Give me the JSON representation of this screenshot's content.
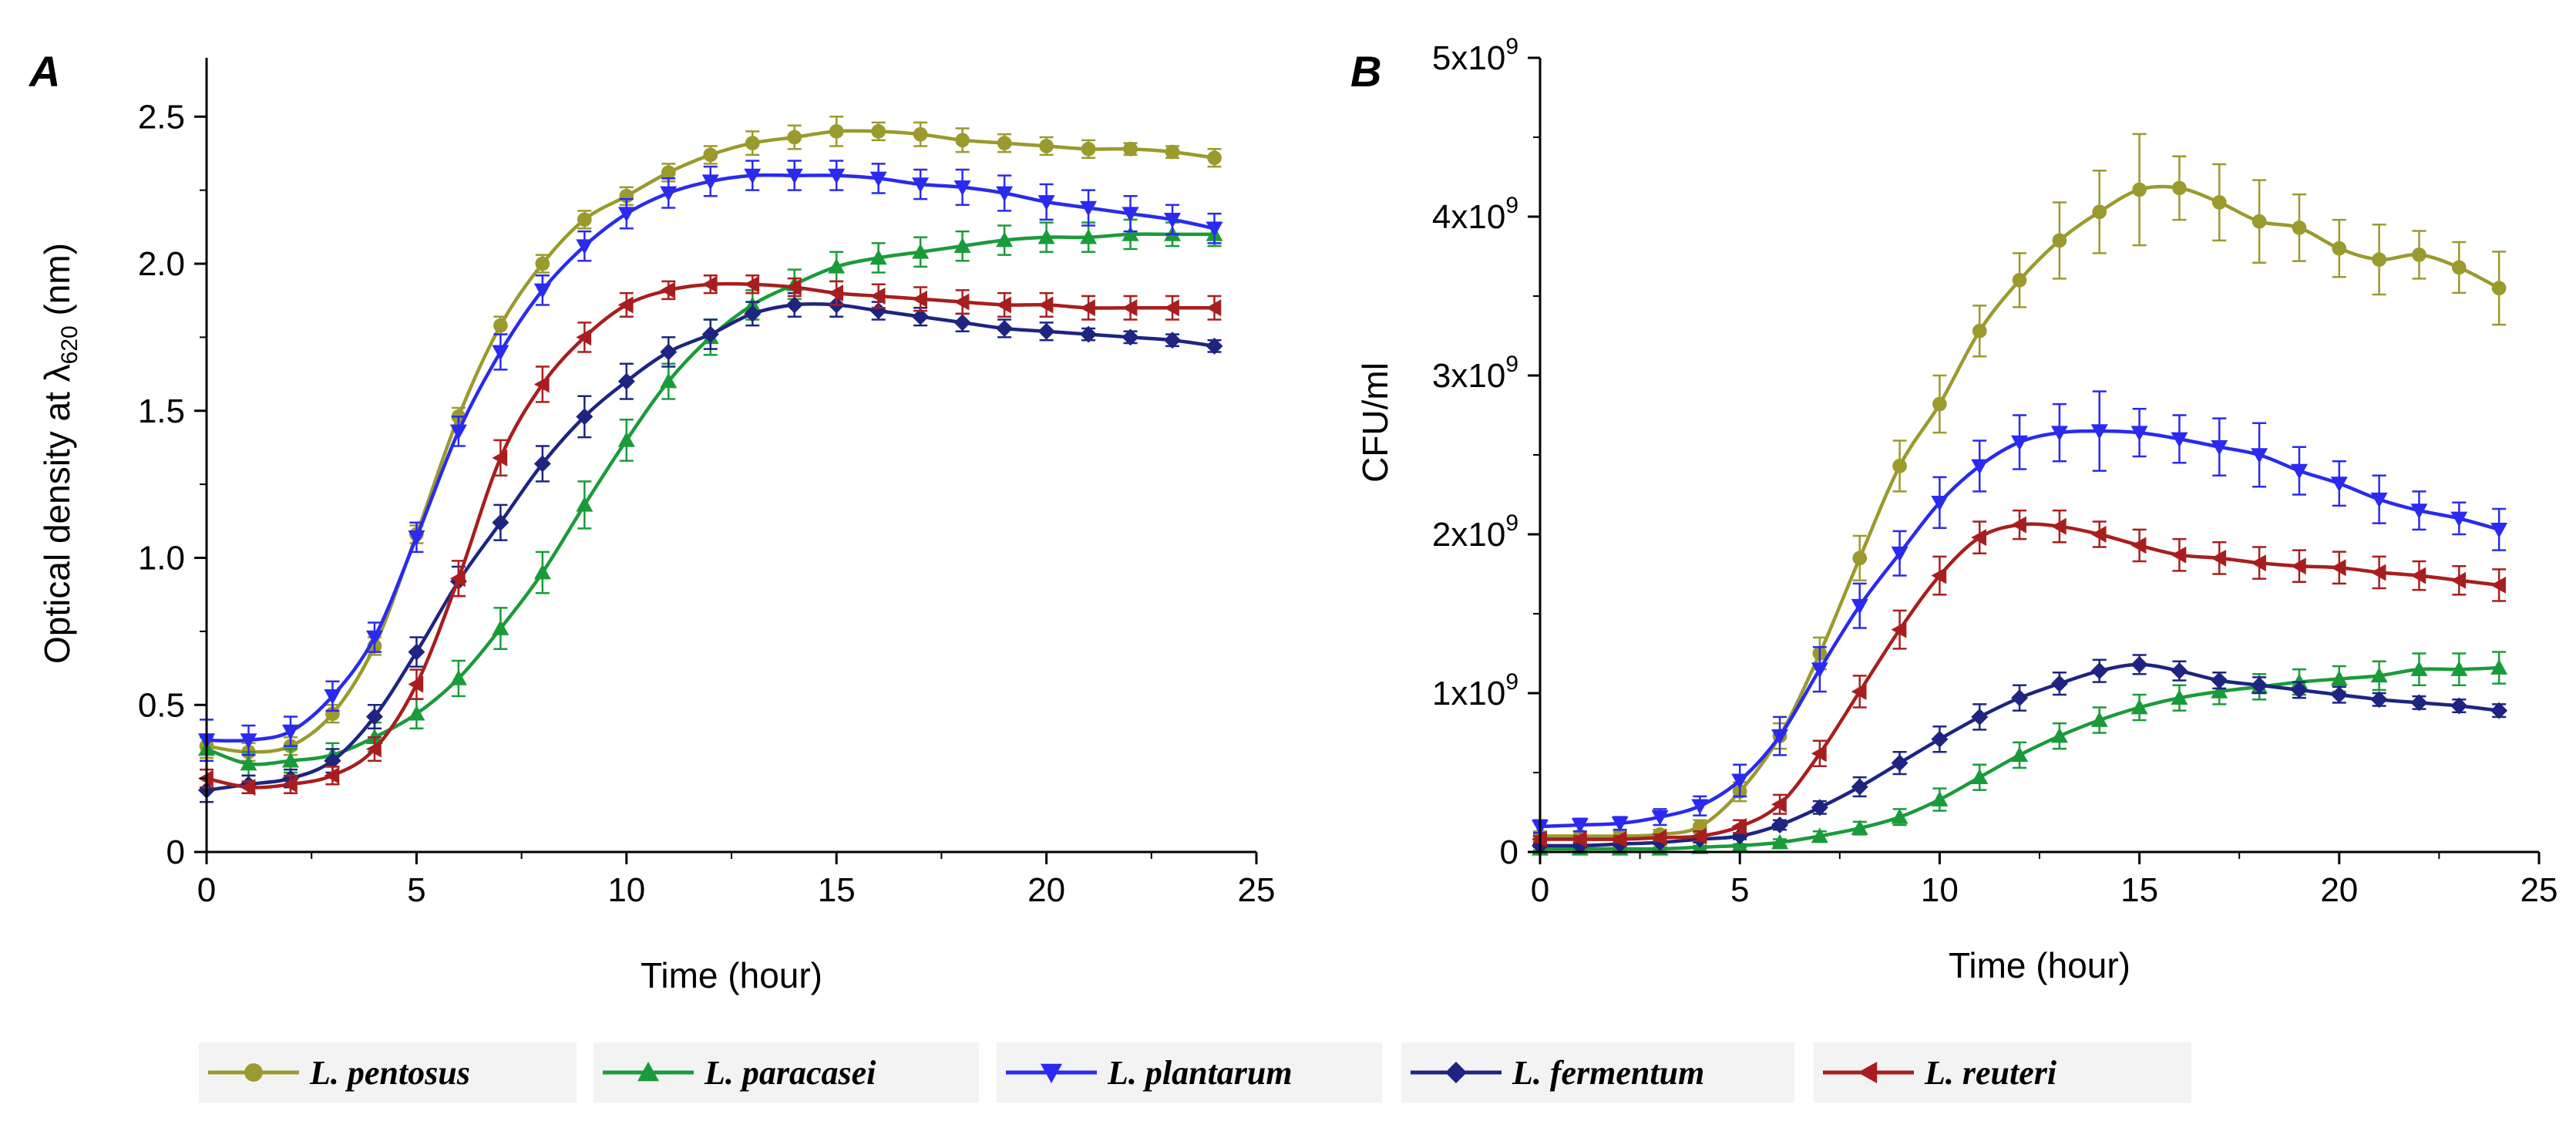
{
  "chart_data": [
    {
      "panel": "A",
      "type": "line",
      "xlabel": "Time (hour)",
      "ylabel_prefix": "Optical density at λ",
      "ylabel_sub": "620",
      "ylabel_suffix": " (nm)",
      "xlim": [
        0,
        25
      ],
      "ylim": [
        0,
        2.7
      ],
      "xticks": [
        0,
        5,
        10,
        15,
        20,
        25
      ],
      "xtick_labels": [
        "0",
        "5",
        "10",
        "15",
        "20",
        "25"
      ],
      "yticks": [
        0,
        0.5,
        1.0,
        1.5,
        2.0,
        2.5
      ],
      "ytick_labels": [
        "0",
        "0.5",
        "1.0",
        "1.5",
        "2.0",
        "2.5"
      ],
      "x": [
        0,
        1,
        2,
        3,
        4,
        5,
        6,
        7,
        8,
        9,
        10,
        11,
        12,
        13,
        14,
        15,
        16,
        17,
        18,
        19,
        20,
        21,
        22,
        23,
        24
      ],
      "series": [
        {
          "name": "L. pentosus",
          "values": [
            0.36,
            0.34,
            0.36,
            0.47,
            0.7,
            1.08,
            1.48,
            1.79,
            2.0,
            2.15,
            2.23,
            2.31,
            2.37,
            2.41,
            2.43,
            2.45,
            2.45,
            2.44,
            2.42,
            2.41,
            2.4,
            2.39,
            2.39,
            2.38,
            2.36
          ],
          "errors": [
            0.04,
            0.03,
            0.03,
            0.03,
            0.03,
            0.03,
            0.03,
            0.03,
            0.03,
            0.03,
            0.03,
            0.03,
            0.03,
            0.04,
            0.04,
            0.05,
            0.03,
            0.04,
            0.04,
            0.03,
            0.03,
            0.03,
            0.02,
            0.02,
            0.03
          ]
        },
        {
          "name": "L. paracasei",
          "values": [
            0.35,
            0.3,
            0.31,
            0.33,
            0.39,
            0.47,
            0.59,
            0.76,
            0.95,
            1.18,
            1.4,
            1.6,
            1.75,
            1.86,
            1.93,
            1.99,
            2.02,
            2.04,
            2.06,
            2.08,
            2.09,
            2.09,
            2.1,
            2.1,
            2.1
          ],
          "errors": [
            0.04,
            0.04,
            0.04,
            0.04,
            0.05,
            0.05,
            0.06,
            0.07,
            0.07,
            0.08,
            0.07,
            0.06,
            0.06,
            0.05,
            0.05,
            0.05,
            0.05,
            0.05,
            0.05,
            0.05,
            0.05,
            0.05,
            0.05,
            0.04,
            0.04
          ]
        },
        {
          "name": "L. plantarum",
          "values": [
            0.38,
            0.38,
            0.41,
            0.53,
            0.73,
            1.07,
            1.43,
            1.7,
            1.91,
            2.06,
            2.17,
            2.24,
            2.28,
            2.3,
            2.3,
            2.3,
            2.29,
            2.27,
            2.26,
            2.24,
            2.21,
            2.19,
            2.17,
            2.15,
            2.12
          ],
          "errors": [
            0.07,
            0.05,
            0.05,
            0.05,
            0.05,
            0.05,
            0.05,
            0.06,
            0.05,
            0.05,
            0.05,
            0.05,
            0.05,
            0.05,
            0.05,
            0.05,
            0.05,
            0.05,
            0.06,
            0.06,
            0.06,
            0.06,
            0.06,
            0.05,
            0.05
          ]
        },
        {
          "name": "L. fermentum",
          "values": [
            0.21,
            0.23,
            0.25,
            0.31,
            0.46,
            0.68,
            0.92,
            1.12,
            1.32,
            1.48,
            1.6,
            1.7,
            1.76,
            1.83,
            1.86,
            1.86,
            1.84,
            1.82,
            1.8,
            1.78,
            1.77,
            1.76,
            1.75,
            1.74,
            1.72
          ],
          "errors": [
            0.04,
            0.03,
            0.03,
            0.04,
            0.04,
            0.05,
            0.05,
            0.06,
            0.06,
            0.07,
            0.06,
            0.05,
            0.05,
            0.04,
            0.04,
            0.04,
            0.03,
            0.03,
            0.03,
            0.03,
            0.03,
            0.02,
            0.02,
            0.02,
            0.02
          ]
        },
        {
          "name": "L. reuteri",
          "values": [
            0.25,
            0.22,
            0.23,
            0.26,
            0.35,
            0.57,
            0.93,
            1.34,
            1.59,
            1.75,
            1.86,
            1.91,
            1.93,
            1.93,
            1.92,
            1.9,
            1.89,
            1.88,
            1.87,
            1.86,
            1.86,
            1.85,
            1.85,
            1.85,
            1.85
          ],
          "errors": [
            0.03,
            0.02,
            0.03,
            0.03,
            0.04,
            0.05,
            0.06,
            0.06,
            0.06,
            0.05,
            0.04,
            0.03,
            0.03,
            0.03,
            0.03,
            0.04,
            0.04,
            0.04,
            0.04,
            0.04,
            0.04,
            0.04,
            0.04,
            0.04,
            0.04
          ]
        }
      ]
    },
    {
      "panel": "B",
      "type": "line",
      "xlabel": "Time (hour)",
      "ylabel": "CFU/ml",
      "xlim": [
        0,
        25
      ],
      "ylim": [
        0,
        5
      ],
      "y_unit_note": "values in units of 1x10^9 CFU/ml",
      "xticks": [
        0,
        5,
        10,
        15,
        20,
        25
      ],
      "xtick_labels": [
        "0",
        "5",
        "10",
        "15",
        "20",
        "25"
      ],
      "yticks": [
        0,
        1,
        2,
        3,
        4,
        5
      ],
      "ytick_base": [
        "0",
        "1x10",
        "2x10",
        "3x10",
        "4x10",
        "5x10"
      ],
      "ytick_exp": [
        "",
        "9",
        "9",
        "9",
        "9",
        "9"
      ],
      "x": [
        0,
        1,
        2,
        3,
        4,
        5,
        6,
        7,
        8,
        9,
        10,
        11,
        12,
        13,
        14,
        15,
        16,
        17,
        18,
        19,
        20,
        21,
        22,
        23,
        24
      ],
      "series": [
        {
          "name": "L. pentosus",
          "values": [
            0.1,
            0.1,
            0.1,
            0.11,
            0.16,
            0.38,
            0.73,
            1.25,
            1.85,
            2.43,
            2.82,
            3.28,
            3.6,
            3.85,
            4.03,
            4.17,
            4.18,
            4.09,
            3.97,
            3.93,
            3.8,
            3.73,
            3.76,
            3.68,
            3.55
          ],
          "errors": [
            0.03,
            0.03,
            0.03,
            0.03,
            0.04,
            0.06,
            0.08,
            0.1,
            0.14,
            0.16,
            0.18,
            0.16,
            0.17,
            0.24,
            0.26,
            0.35,
            0.2,
            0.24,
            0.26,
            0.21,
            0.18,
            0.22,
            0.15,
            0.16,
            0.23
          ]
        },
        {
          "name": "L. paracasei",
          "values": [
            0.02,
            0.02,
            0.02,
            0.02,
            0.03,
            0.04,
            0.06,
            0.1,
            0.15,
            0.22,
            0.33,
            0.47,
            0.61,
            0.73,
            0.83,
            0.91,
            0.97,
            1.01,
            1.04,
            1.07,
            1.09,
            1.11,
            1.15,
            1.15,
            1.16
          ],
          "errors": [
            0.01,
            0.01,
            0.01,
            0.01,
            0.01,
            0.01,
            0.02,
            0.03,
            0.04,
            0.05,
            0.07,
            0.08,
            0.08,
            0.08,
            0.08,
            0.08,
            0.08,
            0.08,
            0.08,
            0.08,
            0.08,
            0.09,
            0.1,
            0.1,
            0.1
          ]
        },
        {
          "name": "L. plantarum",
          "values": [
            0.16,
            0.17,
            0.18,
            0.22,
            0.29,
            0.45,
            0.73,
            1.15,
            1.55,
            1.88,
            2.2,
            2.43,
            2.58,
            2.64,
            2.65,
            2.64,
            2.6,
            2.55,
            2.5,
            2.4,
            2.32,
            2.22,
            2.15,
            2.1,
            2.03
          ],
          "errors": [
            0.04,
            0.04,
            0.04,
            0.05,
            0.06,
            0.1,
            0.12,
            0.14,
            0.14,
            0.14,
            0.16,
            0.16,
            0.17,
            0.18,
            0.25,
            0.15,
            0.15,
            0.18,
            0.2,
            0.15,
            0.14,
            0.15,
            0.12,
            0.1,
            0.13
          ]
        },
        {
          "name": "L. fermentum",
          "values": [
            0.04,
            0.04,
            0.05,
            0.06,
            0.08,
            0.1,
            0.17,
            0.28,
            0.41,
            0.56,
            0.71,
            0.85,
            0.97,
            1.06,
            1.14,
            1.18,
            1.14,
            1.08,
            1.05,
            1.02,
            0.99,
            0.96,
            0.94,
            0.92,
            0.89
          ],
          "errors": [
            0.01,
            0.01,
            0.01,
            0.01,
            0.02,
            0.02,
            0.03,
            0.04,
            0.06,
            0.07,
            0.08,
            0.08,
            0.08,
            0.07,
            0.07,
            0.06,
            0.06,
            0.05,
            0.05,
            0.05,
            0.05,
            0.04,
            0.04,
            0.04,
            0.04
          ]
        },
        {
          "name": "L. reuteri",
          "values": [
            0.08,
            0.08,
            0.08,
            0.09,
            0.1,
            0.16,
            0.3,
            0.62,
            1.01,
            1.4,
            1.74,
            1.98,
            2.06,
            2.05,
            2.0,
            1.93,
            1.87,
            1.85,
            1.82,
            1.8,
            1.79,
            1.76,
            1.74,
            1.71,
            1.68
          ],
          "errors": [
            0.02,
            0.02,
            0.02,
            0.02,
            0.03,
            0.04,
            0.06,
            0.08,
            0.1,
            0.12,
            0.12,
            0.1,
            0.09,
            0.1,
            0.08,
            0.1,
            0.1,
            0.1,
            0.1,
            0.1,
            0.1,
            0.1,
            0.09,
            0.09,
            0.1
          ]
        }
      ]
    }
  ],
  "legend": [
    {
      "name": "L. pentosus",
      "color": "#9a9a2e",
      "marker": "circle"
    },
    {
      "name": "L. paracasei",
      "color": "#1a9b3a",
      "marker": "triangle-up"
    },
    {
      "name": "L. plantarum",
      "color": "#2a2af0",
      "marker": "triangle-down"
    },
    {
      "name": "L. fermentum",
      "color": "#1e2480",
      "marker": "diamond"
    },
    {
      "name": "L. reuteri",
      "color": "#a81e1e",
      "marker": "triangle-left"
    }
  ]
}
